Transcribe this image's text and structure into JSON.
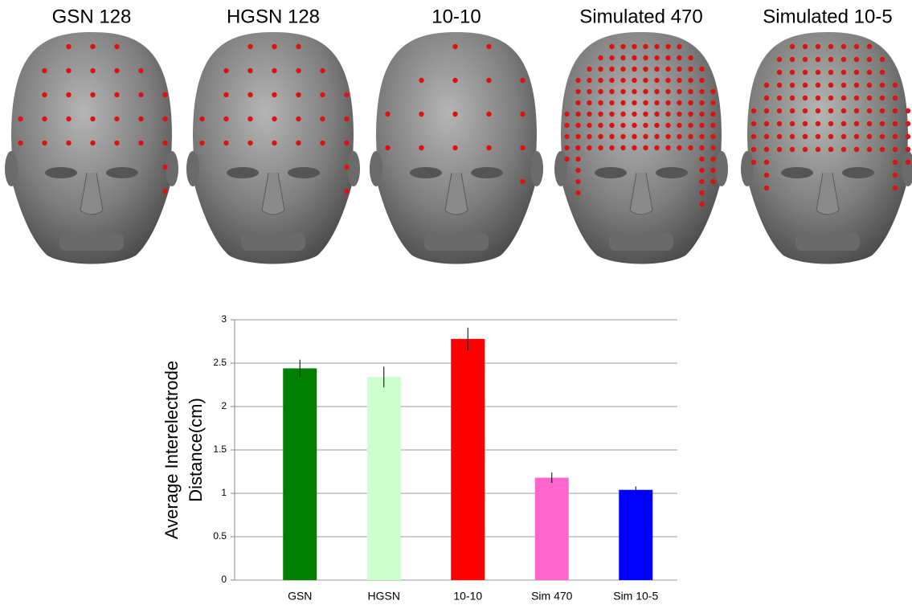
{
  "panel_titles": [
    "GSN 128",
    "HGSN 128",
    "10-10",
    "Simulated 470",
    "Simulated 10-5"
  ],
  "chart_data": {
    "type": "bar",
    "y_label": [
      "Average Interelectrode",
      "Distance(cm)"
    ],
    "categories": [
      "GSN",
      "HGSN",
      "10-10",
      "Sim 470",
      "Sim 10-5"
    ],
    "values": [
      2.44,
      2.34,
      2.78,
      1.18,
      1.04
    ],
    "errors": [
      0.1,
      0.12,
      0.13,
      0.06,
      0.04
    ],
    "colors": [
      "#007f00",
      "#ccffcc",
      "#ff0000",
      "#ff66cc",
      "#0000ff"
    ],
    "ylim": [
      0,
      3
    ],
    "yticks": [
      0,
      0.5,
      1,
      1.5,
      2,
      2.5,
      3
    ],
    "grid": true
  }
}
